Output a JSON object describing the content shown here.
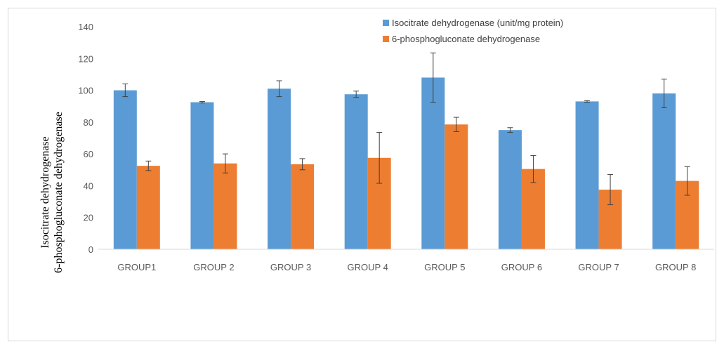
{
  "chart_data": {
    "type": "bar",
    "categories": [
      "GROUP1",
      "GROUP 2",
      "GROUP 3",
      "GROUP 4",
      "GROUP 5",
      "GROUP 6",
      "GROUP 7",
      "GROUP 8"
    ],
    "series": [
      {
        "name": "Isocitrate dehydrogenase (unit/mg protein)",
        "color": "#5b9bd5",
        "values": [
          100,
          92.5,
          101,
          97.5,
          108,
          75,
          93,
          98
        ],
        "errors": [
          4,
          0.5,
          5,
          2,
          15.5,
          1.5,
          0.5,
          9
        ]
      },
      {
        "name": "6-phosphogluconate dehydrogenase",
        "color": "#ed7d31",
        "values": [
          52.5,
          54,
          53.5,
          57.5,
          78.5,
          50.5,
          37.5,
          43
        ],
        "errors": [
          3,
          6,
          3.5,
          16,
          4.5,
          8.5,
          9.5,
          9
        ]
      }
    ],
    "ylabel_lines": [
      "Isocitrate dehydrogenase",
      "6-phosphogluconate dehydrogenase"
    ],
    "ylim": [
      0,
      140
    ],
    "yticks": [
      0,
      20,
      40,
      60,
      80,
      100,
      120,
      140
    ],
    "legend_position": "top-right",
    "grid": false
  }
}
